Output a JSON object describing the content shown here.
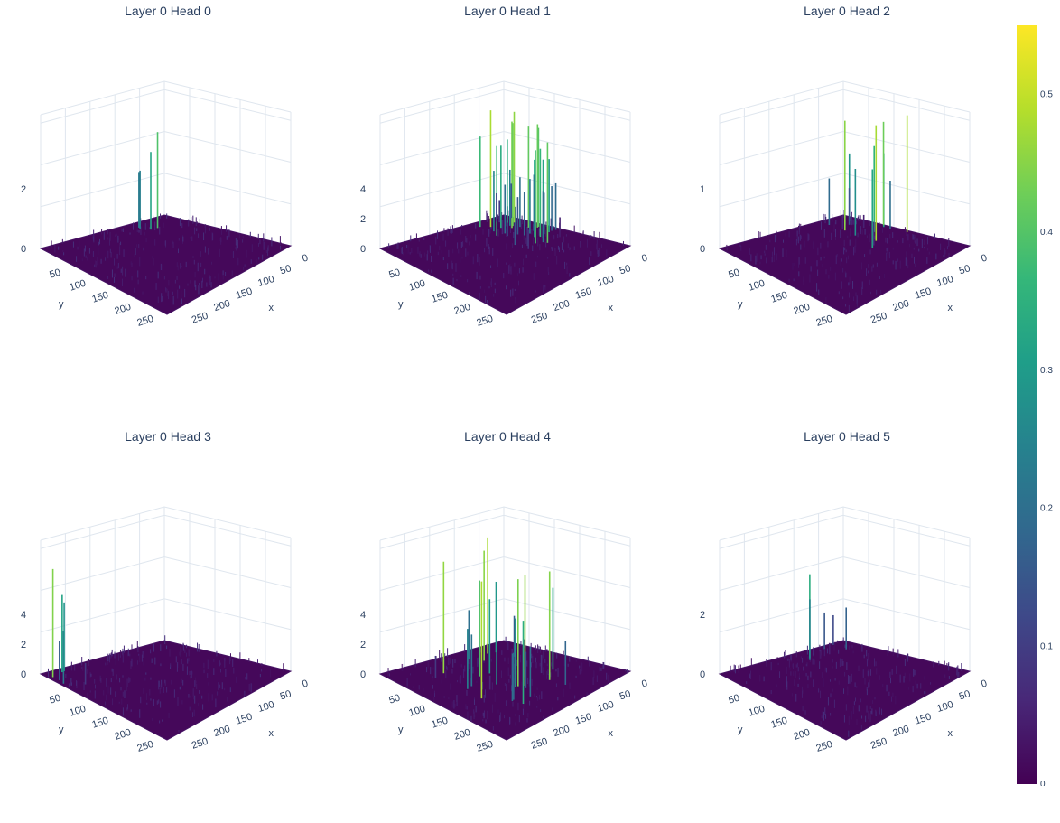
{
  "chart_data": {
    "type": "surface",
    "colorscale": "viridis",
    "colorscale_stops": [
      "#440154",
      "#482878",
      "#3e4989",
      "#31688e",
      "#26828e",
      "#1f9e89",
      "#35b779",
      "#6ece58",
      "#b5de2b",
      "#fde725"
    ],
    "colorbar": {
      "range": [
        0,
        0.55
      ],
      "ticks": [
        {
          "value": 0,
          "label": "0"
        },
        {
          "value": 0.1,
          "label": "0.1"
        },
        {
          "value": 0.2,
          "label": "0.2"
        },
        {
          "value": 0.3,
          "label": "0.3"
        },
        {
          "value": 0.4,
          "label": "0.4"
        },
        {
          "value": 0.5,
          "label": "0.5"
        }
      ]
    },
    "x_ticks": [
      "0",
      "50",
      "100",
      "150",
      "200",
      "250"
    ],
    "y_ticks": [
      "50",
      "100",
      "150",
      "200",
      "250"
    ],
    "xlabel": "x",
    "ylabel": "y",
    "xrange": [
      0,
      280
    ],
    "yrange": [
      0,
      280
    ],
    "subplots": [
      {
        "title": "Layer 0 Head 0",
        "z_ticks": [
          "0",
          "2"
        ],
        "peak": 0.45,
        "spike_count": 4,
        "spike_region": "near-back-corner"
      },
      {
        "title": "Layer 0 Head 1",
        "z_ticks": [
          "0",
          "2",
          "4"
        ],
        "peak": 0.5,
        "spike_count": 40,
        "spike_region": "right-edge"
      },
      {
        "title": "Layer 0 Head 2",
        "z_ticks": [
          "0",
          "1"
        ],
        "peak": 0.5,
        "spike_count": 16,
        "spike_region": "right-edge"
      },
      {
        "title": "Layer 0 Head 3",
        "z_ticks": [
          "0",
          "2",
          "4"
        ],
        "peak": 0.45,
        "spike_count": 6,
        "spike_region": "left-edge"
      },
      {
        "title": "Layer 0 Head 4",
        "z_ticks": [
          "0",
          "2",
          "4"
        ],
        "peak": 0.5,
        "spike_count": 26,
        "spike_region": "scattered"
      },
      {
        "title": "Layer 0 Head 5",
        "z_ticks": [
          "0",
          "2"
        ],
        "peak": 0.45,
        "spike_count": 6,
        "spike_region": "back-corner"
      }
    ]
  }
}
